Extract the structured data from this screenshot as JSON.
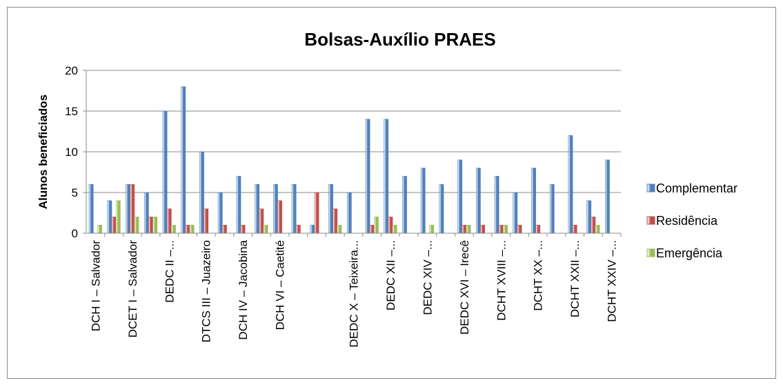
{
  "chart_data": {
    "type": "bar",
    "title": "Bolsas-Auxílio PRAES",
    "y_label": "Alunos beneficiados",
    "categories": [
      "DCH I – Salvador",
      null,
      "DCET I – Salvador",
      null,
      "DEDC II –...",
      null,
      "DTCS III – Juazeiro",
      null,
      "DCH IV – Jacobina",
      null,
      "DCH VI – Caetité",
      null,
      null,
      null,
      "DEDC X – Teixeira...",
      null,
      "DEDC XII –...",
      null,
      "DEDC XIV –...",
      null,
      "DEDC XVI – Irecê",
      null,
      "DCHT XVIII –...",
      null,
      "DCHT XX –...",
      null,
      "DCHT XXII –...",
      null,
      "DCHT XXIV –..."
    ],
    "series": [
      {
        "name": "Complementar",
        "color": "#4f81bd",
        "values": [
          6,
          4,
          6,
          5,
          15,
          18,
          10,
          5,
          7,
          6,
          6,
          6,
          1,
          6,
          5,
          14,
          14,
          7,
          8,
          6,
          9,
          8,
          7,
          5,
          8,
          6,
          12,
          4,
          9
        ]
      },
      {
        "name": "Residência",
        "color": "#c0504d",
        "values": [
          0,
          2,
          6,
          2,
          3,
          1,
          3,
          1,
          1,
          3,
          4,
          1,
          5,
          3,
          0,
          1,
          2,
          0,
          0,
          0,
          1,
          1,
          1,
          1,
          1,
          0,
          1,
          2,
          0
        ]
      },
      {
        "name": "Emergência",
        "color": "#9bbb59",
        "values": [
          1,
          4,
          2,
          2,
          1,
          1,
          0,
          0,
          0,
          1,
          0,
          0,
          0,
          1,
          0,
          2,
          1,
          0,
          1,
          0,
          1,
          0,
          1,
          0,
          0,
          0,
          0,
          1,
          0
        ]
      }
    ],
    "ylim": [
      0,
      20
    ],
    "yticks": [
      0,
      5,
      10,
      15,
      20
    ],
    "grid": true,
    "legend": "right"
  }
}
